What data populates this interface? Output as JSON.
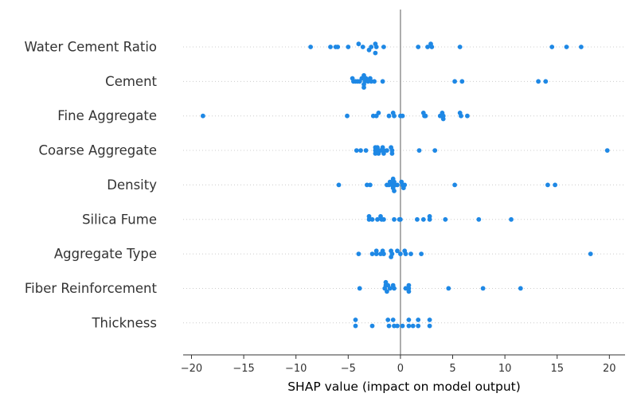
{
  "chart_data": {
    "type": "scatter",
    "title": "",
    "xlabel": "SHAP value (impact on model output)",
    "ylabel": "",
    "xlim": [
      -20.8,
      21.5
    ],
    "x_ticks": [
      -20,
      -15,
      -10,
      -5,
      0,
      5,
      10,
      15,
      20
    ],
    "x_tick_labels": [
      "−20",
      "−15",
      "−10",
      "−5",
      "0",
      "5",
      "10",
      "15",
      "20"
    ],
    "zero_line": true,
    "grid": false,
    "point_color": "#1e88e5",
    "zero_line_color": "#999999",
    "row_guide_color": "#cccccc",
    "features": [
      {
        "name": "Water Cement Ratio",
        "points": [
          {
            "x": -8.6,
            "y": 0
          },
          {
            "x": -6.7,
            "y": 0
          },
          {
            "x": -6.2,
            "y": 0
          },
          {
            "x": -6.0,
            "y": 0
          },
          {
            "x": -5.0,
            "y": 0
          },
          {
            "x": -4.0,
            "y": 1
          },
          {
            "x": -3.6,
            "y": 0
          },
          {
            "x": -3.0,
            "y": -1
          },
          {
            "x": -2.8,
            "y": 0
          },
          {
            "x": -2.4,
            "y": 1
          },
          {
            "x": -2.3,
            "y": 0
          },
          {
            "x": -2.4,
            "y": -2
          },
          {
            "x": -1.6,
            "y": 0
          },
          {
            "x": 1.7,
            "y": 0
          },
          {
            "x": 2.6,
            "y": 0
          },
          {
            "x": 3.0,
            "y": 0
          },
          {
            "x": 2.9,
            "y": 1
          },
          {
            "x": 5.7,
            "y": 0
          },
          {
            "x": 14.5,
            "y": 0
          },
          {
            "x": 15.9,
            "y": 0
          },
          {
            "x": 17.3,
            "y": 0
          }
        ]
      },
      {
        "name": "Cement",
        "points": [
          {
            "x": -4.6,
            "y": 1
          },
          {
            "x": -4.5,
            "y": 0
          },
          {
            "x": -4.3,
            "y": 0
          },
          {
            "x": -4.1,
            "y": 0
          },
          {
            "x": -3.9,
            "y": 0
          },
          {
            "x": -3.7,
            "y": 1
          },
          {
            "x": -3.5,
            "y": 2
          },
          {
            "x": -3.5,
            "y": -1
          },
          {
            "x": -3.4,
            "y": 0
          },
          {
            "x": -3.3,
            "y": 1
          },
          {
            "x": -3.5,
            "y": -2
          },
          {
            "x": -3.1,
            "y": 0
          },
          {
            "x": -2.9,
            "y": 1
          },
          {
            "x": -2.8,
            "y": 0
          },
          {
            "x": -2.5,
            "y": 0
          },
          {
            "x": -1.7,
            "y": 0
          },
          {
            "x": 5.2,
            "y": 0
          },
          {
            "x": 5.9,
            "y": 0
          },
          {
            "x": 13.2,
            "y": 0
          },
          {
            "x": 13.9,
            "y": 0
          }
        ]
      },
      {
        "name": "Fine Aggregate",
        "points": [
          {
            "x": -18.9,
            "y": 0
          },
          {
            "x": -5.1,
            "y": 0
          },
          {
            "x": -2.6,
            "y": 0
          },
          {
            "x": -2.3,
            "y": 0
          },
          {
            "x": -2.1,
            "y": 1
          },
          {
            "x": -1.1,
            "y": 0
          },
          {
            "x": -0.7,
            "y": 1
          },
          {
            "x": -0.6,
            "y": 0
          },
          {
            "x": 0.0,
            "y": 0
          },
          {
            "x": 0.2,
            "y": 0
          },
          {
            "x": 2.2,
            "y": 1
          },
          {
            "x": 2.3,
            "y": 0
          },
          {
            "x": 2.4,
            "y": 0
          },
          {
            "x": 3.8,
            "y": 0
          },
          {
            "x": 4.0,
            "y": 1
          },
          {
            "x": 4.1,
            "y": 0
          },
          {
            "x": 4.1,
            "y": -1
          },
          {
            "x": 5.7,
            "y": 1
          },
          {
            "x": 5.8,
            "y": 0
          },
          {
            "x": 6.4,
            "y": 0
          }
        ]
      },
      {
        "name": "Coarse Aggregate",
        "points": [
          {
            "x": -4.2,
            "y": 0
          },
          {
            "x": -3.8,
            "y": 0
          },
          {
            "x": -3.3,
            "y": 0
          },
          {
            "x": -2.4,
            "y": 1
          },
          {
            "x": -2.4,
            "y": 0
          },
          {
            "x": -2.4,
            "y": -1
          },
          {
            "x": -2.2,
            "y": 1
          },
          {
            "x": -2.1,
            "y": 0
          },
          {
            "x": -2.1,
            "y": -1
          },
          {
            "x": -1.9,
            "y": 0
          },
          {
            "x": -1.7,
            "y": 1
          },
          {
            "x": -1.6,
            "y": 0
          },
          {
            "x": -1.6,
            "y": -1
          },
          {
            "x": -1.3,
            "y": 0
          },
          {
            "x": -0.9,
            "y": 1
          },
          {
            "x": -0.8,
            "y": 0
          },
          {
            "x": -0.8,
            "y": -1
          },
          {
            "x": 1.8,
            "y": 0
          },
          {
            "x": 3.3,
            "y": 0
          },
          {
            "x": 19.8,
            "y": 0
          }
        ]
      },
      {
        "name": "Density",
        "points": [
          {
            "x": -5.9,
            "y": 0
          },
          {
            "x": -3.2,
            "y": 0
          },
          {
            "x": -2.9,
            "y": 0
          },
          {
            "x": -1.3,
            "y": 0
          },
          {
            "x": -1.1,
            "y": 0
          },
          {
            "x": -1.0,
            "y": 1
          },
          {
            "x": -0.8,
            "y": 0
          },
          {
            "x": -0.7,
            "y": 2
          },
          {
            "x": -0.7,
            "y": -1
          },
          {
            "x": -0.6,
            "y": 1
          },
          {
            "x": -0.5,
            "y": 0
          },
          {
            "x": -0.6,
            "y": -2
          },
          {
            "x": -0.3,
            "y": 0
          },
          {
            "x": 0.1,
            "y": 1
          },
          {
            "x": 0.2,
            "y": 0
          },
          {
            "x": 0.3,
            "y": -1
          },
          {
            "x": 0.4,
            "y": 0
          },
          {
            "x": 5.2,
            "y": 0
          },
          {
            "x": 14.1,
            "y": 0
          },
          {
            "x": 14.8,
            "y": 0
          }
        ]
      },
      {
        "name": "Silica Fume",
        "points": [
          {
            "x": -3.0,
            "y": 1
          },
          {
            "x": -3.0,
            "y": 0
          },
          {
            "x": -2.7,
            "y": 0
          },
          {
            "x": -2.2,
            "y": 0
          },
          {
            "x": -1.9,
            "y": 1
          },
          {
            "x": -1.8,
            "y": 0
          },
          {
            "x": -1.6,
            "y": 0
          },
          {
            "x": -0.6,
            "y": 0
          },
          {
            "x": -0.1,
            "y": 0
          },
          {
            "x": 0.0,
            "y": 0
          },
          {
            "x": 1.6,
            "y": 0
          },
          {
            "x": 2.2,
            "y": 0
          },
          {
            "x": 2.8,
            "y": 1
          },
          {
            "x": 2.8,
            "y": 0
          },
          {
            "x": 4.3,
            "y": 0
          },
          {
            "x": 7.5,
            "y": 0
          },
          {
            "x": 10.6,
            "y": 0
          }
        ]
      },
      {
        "name": "Aggregate Type",
        "points": [
          {
            "x": -4.0,
            "y": 0
          },
          {
            "x": -2.7,
            "y": 0
          },
          {
            "x": -2.3,
            "y": 1
          },
          {
            "x": -2.3,
            "y": 0
          },
          {
            "x": -1.9,
            "y": 0
          },
          {
            "x": -1.7,
            "y": 1
          },
          {
            "x": -1.6,
            "y": 0
          },
          {
            "x": -0.9,
            "y": 1
          },
          {
            "x": -0.8,
            "y": 0
          },
          {
            "x": -0.9,
            "y": -1
          },
          {
            "x": -0.3,
            "y": 1
          },
          {
            "x": 0.0,
            "y": 0
          },
          {
            "x": 0.4,
            "y": 1
          },
          {
            "x": 0.5,
            "y": 0
          },
          {
            "x": 1.0,
            "y": 0
          },
          {
            "x": 2.0,
            "y": 0
          },
          {
            "x": 18.2,
            "y": 0
          }
        ]
      },
      {
        "name": "Fiber Reinforcement",
        "points": [
          {
            "x": -3.9,
            "y": 0
          },
          {
            "x": -1.4,
            "y": 2
          },
          {
            "x": -1.4,
            "y": 1
          },
          {
            "x": -1.5,
            "y": 0
          },
          {
            "x": -1.2,
            "y": 1
          },
          {
            "x": -1.3,
            "y": -1
          },
          {
            "x": -1.0,
            "y": 0
          },
          {
            "x": -0.7,
            "y": 1
          },
          {
            "x": -0.6,
            "y": 0
          },
          {
            "x": 0.5,
            "y": 0
          },
          {
            "x": 0.8,
            "y": 1
          },
          {
            "x": 0.8,
            "y": 0
          },
          {
            "x": 0.8,
            "y": -1
          },
          {
            "x": 4.6,
            "y": 0
          },
          {
            "x": 7.9,
            "y": 0
          },
          {
            "x": 11.5,
            "y": 0
          }
        ]
      },
      {
        "name": "Thickness",
        "points": [
          {
            "x": -4.3,
            "y": 1
          },
          {
            "x": -4.3,
            "y": -1
          },
          {
            "x": -2.7,
            "y": -1
          },
          {
            "x": -1.2,
            "y": 1
          },
          {
            "x": -1.1,
            "y": -1
          },
          {
            "x": -0.7,
            "y": 1
          },
          {
            "x": -0.6,
            "y": -1
          },
          {
            "x": -0.3,
            "y": -1
          },
          {
            "x": 0.2,
            "y": -1
          },
          {
            "x": 0.8,
            "y": 1
          },
          {
            "x": 0.8,
            "y": -1
          },
          {
            "x": 1.2,
            "y": -1
          },
          {
            "x": 1.7,
            "y": 1
          },
          {
            "x": 1.7,
            "y": -1
          },
          {
            "x": 2.8,
            "y": 1
          },
          {
            "x": 2.8,
            "y": -1
          }
        ]
      }
    ]
  }
}
